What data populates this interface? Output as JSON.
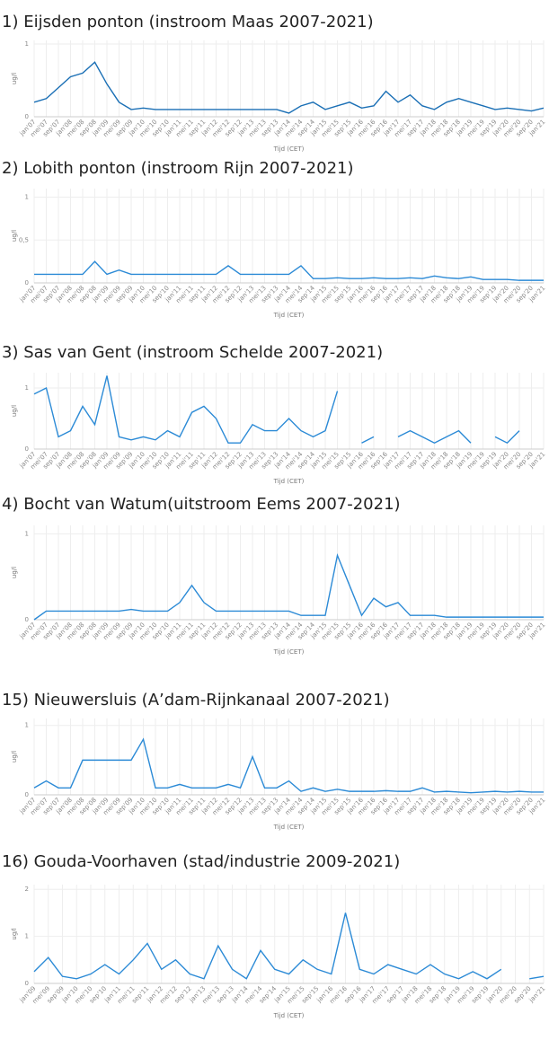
{
  "chart_data": [
    {
      "type": "line",
      "title": "1)    Eijsden ponton (instroom Maas 2007-2021)",
      "ylabel": "ug/l",
      "xlabel": "Tijd (CET)",
      "color": "#1a6fb5",
      "grid": true,
      "categories": [
        "jan'07",
        "mei'07",
        "sep'07",
        "jan'08",
        "mei'08",
        "sep'08",
        "jan'09",
        "mei'09",
        "sep'09",
        "jan'10",
        "mei'10",
        "sep'10",
        "jan'11",
        "mei'11",
        "sep'11",
        "jan'12",
        "mei'12",
        "sep'12",
        "jan'13",
        "mei'13",
        "sep'13",
        "jan'14",
        "mei'14",
        "sep'14",
        "jan'15",
        "mei'15",
        "sep'15",
        "jan'16",
        "mei'16",
        "sep'16",
        "jan'17",
        "mei'17",
        "sep'17",
        "jan'18",
        "mei'18",
        "sep'18",
        "jan'19",
        "mei'19",
        "sep'19",
        "jan'20",
        "mei'20",
        "sep'20",
        "jan'21"
      ],
      "values": [
        0.2,
        0.25,
        0.4,
        0.55,
        0.6,
        0.75,
        0.45,
        0.2,
        0.1,
        0.12,
        0.1,
        0.1,
        0.1,
        0.1,
        0.1,
        0.1,
        0.1,
        0.1,
        0.1,
        0.1,
        0.1,
        0.05,
        0.15,
        0.2,
        0.1,
        0.15,
        0.2,
        0.12,
        0.15,
        0.35,
        0.2,
        0.3,
        0.15,
        0.1,
        0.2,
        0.25,
        0.2,
        0.15,
        0.1,
        0.12,
        0.1,
        0.08,
        0.12
      ],
      "ylim": [
        0,
        1.05
      ],
      "yticks": [
        0,
        1
      ]
    },
    {
      "type": "line",
      "title": "2)    Lobith ponton (instroom Rijn 2007-2021)",
      "ylabel": "ug/l",
      "xlabel": "Tijd (CET)",
      "color": "#2b8ad6",
      "grid": true,
      "categories": [
        "jan'07",
        "mei'07",
        "sep'07",
        "jan'08",
        "mei'08",
        "sep'08",
        "jan'09",
        "mei'09",
        "sep'09",
        "jan'10",
        "mei'10",
        "sep'10",
        "jan'11",
        "mei'11",
        "sep'11",
        "jan'12",
        "mei'12",
        "sep'12",
        "jan'13",
        "mei'13",
        "sep'13",
        "jan'14",
        "mei'14",
        "sep'14",
        "jan'15",
        "mei'15",
        "sep'15",
        "jan'16",
        "mei'16",
        "sep'16",
        "jan'17",
        "mei'17",
        "sep'17",
        "jan'18",
        "mei'18",
        "sep'18",
        "jan'19",
        "mei'19",
        "sep'19",
        "jan'20",
        "mei'20",
        "sep'20",
        "jan'21"
      ],
      "values": [
        0.1,
        0.1,
        0.1,
        0.1,
        0.1,
        0.25,
        0.1,
        0.15,
        0.1,
        0.1,
        0.1,
        0.1,
        0.1,
        0.1,
        0.1,
        0.1,
        0.2,
        0.1,
        0.1,
        0.1,
        0.1,
        0.1,
        0.2,
        0.05,
        0.05,
        0.06,
        0.05,
        0.05,
        0.06,
        0.05,
        0.05,
        0.06,
        0.05,
        0.08,
        0.06,
        0.05,
        0.07,
        0.04,
        0.04,
        0.04,
        0.03,
        0.03,
        0.03
      ],
      "ylim": [
        0,
        1.1
      ],
      "yticks": [
        0,
        {
          "value": 0.5,
          "label": "0,5"
        },
        1
      ]
    },
    {
      "type": "line",
      "title": "3)    Sas van Gent (instroom Schelde 2007-2021)",
      "ylabel": "ug/l",
      "xlabel": "Tijd (CET)",
      "color": "#2b8ad6",
      "grid": true,
      "categories": [
        "jan'07",
        "mei'07",
        "sep'07",
        "jan'08",
        "mei'08",
        "sep'08",
        "jan'09",
        "mei'09",
        "sep'09",
        "jan'10",
        "mei'10",
        "sep'10",
        "jan'11",
        "mei'11",
        "sep'11",
        "jan'12",
        "mei'12",
        "sep'12",
        "jan'13",
        "mei'13",
        "sep'13",
        "jan'14",
        "mei'14",
        "sep'14",
        "jan'15",
        "mei'15",
        "sep'15",
        "jan'16",
        "mei'16",
        "sep'16",
        "jan'17",
        "mei'17",
        "sep'17",
        "jan'18",
        "mei'18",
        "sep'18",
        "jan'19",
        "mei'19",
        "sep'19",
        "jan'20",
        "mei'20",
        "sep'20",
        "jan'21"
      ],
      "values": [
        0.9,
        1.0,
        0.2,
        0.3,
        0.7,
        0.4,
        1.2,
        0.2,
        0.15,
        0.2,
        0.15,
        0.3,
        0.2,
        0.6,
        0.7,
        0.5,
        0.1,
        0.1,
        0.4,
        0.3,
        0.3,
        0.5,
        0.3,
        0.2,
        0.3,
        0.95,
        null,
        0.1,
        0.2,
        null,
        0.2,
        0.3,
        0.2,
        0.1,
        0.2,
        0.3,
        0.1,
        null,
        0.2,
        0.1,
        0.3,
        null,
        0.2
      ],
      "ylim": [
        0,
        1.25
      ],
      "yticks": [
        0,
        1
      ]
    },
    {
      "type": "line",
      "title": "4) Bocht van Watum(uitstroom Eems 2007-2021)",
      "ylabel": "ug/l",
      "xlabel": "Tijd (CET)",
      "color": "#2b8ad6",
      "grid": true,
      "categories": [
        "jan'07",
        "mei'07",
        "sep'07",
        "jan'08",
        "mei'08",
        "sep'08",
        "jan'09",
        "mei'09",
        "sep'09",
        "jan'10",
        "mei'10",
        "sep'10",
        "jan'11",
        "mei'11",
        "sep'11",
        "jan'12",
        "mei'12",
        "sep'12",
        "jan'13",
        "mei'13",
        "sep'13",
        "jan'14",
        "mei'14",
        "sep'14",
        "jan'15",
        "mei'15",
        "sep'15",
        "jan'16",
        "mei'16",
        "sep'16",
        "jan'17",
        "mei'17",
        "sep'17",
        "jan'18",
        "mei'18",
        "sep'18",
        "jan'19",
        "mei'19",
        "sep'19",
        "jan'20",
        "mei'20",
        "sep'20",
        "jan'21"
      ],
      "values": [
        0,
        0.1,
        0.1,
        0.1,
        0.1,
        0.1,
        0.1,
        0.1,
        0.12,
        0.1,
        0.1,
        0.1,
        0.2,
        0.4,
        0.2,
        0.1,
        0.1,
        0.1,
        0.1,
        0.1,
        0.1,
        0.1,
        0.05,
        0.05,
        0.05,
        0.75,
        0.4,
        0.05,
        0.25,
        0.15,
        0.2,
        0.05,
        0.05,
        0.05,
        0.03,
        0.03,
        0.03,
        0.03,
        0.03,
        0.03,
        0.03,
        0.03,
        0.03
      ],
      "ylim": [
        0,
        1.1
      ],
      "yticks": [
        0,
        1
      ]
    },
    {
      "type": "line",
      "title": "15) Nieuwersluis (A’dam-Rijnkanaal 2007-2021)",
      "ylabel": "ug/l",
      "xlabel": "Tijd (CET)",
      "color": "#2b8ad6",
      "grid": true,
      "categories": [
        "jan'07",
        "mei'07",
        "sep'07",
        "jan'08",
        "mei'08",
        "sep'08",
        "jan'09",
        "mei'09",
        "sep'09",
        "jan'10",
        "mei'10",
        "sep'10",
        "jan'11",
        "mei'11",
        "sep'11",
        "jan'12",
        "mei'12",
        "sep'12",
        "jan'13",
        "mei'13",
        "sep'13",
        "jan'14",
        "mei'14",
        "sep'14",
        "jan'15",
        "mei'15",
        "sep'15",
        "jan'16",
        "mei'16",
        "sep'16",
        "jan'17",
        "mei'17",
        "sep'17",
        "jan'18",
        "mei'18",
        "sep'18",
        "jan'19",
        "mei'19",
        "sep'19",
        "jan'20",
        "mei'20",
        "sep'20",
        "jan'21"
      ],
      "values": [
        0.1,
        0.2,
        0.1,
        0.1,
        0.5,
        0.5,
        0.5,
        0.5,
        0.5,
        0.8,
        0.1,
        0.1,
        0.15,
        0.1,
        0.1,
        0.1,
        0.15,
        0.1,
        0.55,
        0.1,
        0.1,
        0.2,
        0.05,
        0.1,
        0.05,
        0.08,
        0.05,
        0.05,
        0.05,
        0.06,
        0.05,
        0.05,
        0.1,
        0.04,
        0.05,
        0.04,
        0.03,
        0.04,
        0.05,
        0.04,
        0.05,
        0.04,
        0.04
      ],
      "ylim": [
        0,
        1.1
      ],
      "yticks": [
        0,
        1
      ]
    },
    {
      "type": "line",
      "title": "16) Gouda-Voorhaven (stad/industrie 2009-2021)",
      "ylabel": "ug/l",
      "xlabel": "Tijd (CET)",
      "color": "#2b8ad6",
      "grid": true,
      "categories": [
        "jan'09",
        "mei'09",
        "sep'09",
        "jan'10",
        "mei'10",
        "sep'10",
        "jan'11",
        "mei'11",
        "sep'11",
        "jan'12",
        "mei'12",
        "sep'12",
        "jan'13",
        "mei'13",
        "sep'13",
        "jan'14",
        "mei'14",
        "sep'14",
        "jan'15",
        "mei'15",
        "sep'15",
        "jan'16",
        "mei'16",
        "sep'16",
        "jan'17",
        "mei'17",
        "sep'17",
        "jan'18",
        "mei'18",
        "sep'18",
        "jan'19",
        "mei'19",
        "sep'19",
        "jan'20",
        "mei'20",
        "sep'20",
        "jan'21"
      ],
      "values": [
        0.25,
        0.55,
        0.15,
        0.1,
        0.2,
        0.4,
        0.2,
        0.5,
        0.85,
        0.3,
        0.5,
        0.2,
        0.1,
        0.8,
        0.3,
        0.1,
        0.7,
        0.3,
        0.2,
        0.5,
        0.3,
        0.2,
        1.5,
        0.3,
        0.2,
        0.4,
        0.3,
        0.2,
        0.4,
        0.2,
        0.1,
        0.25,
        0.1,
        0.3,
        null,
        0.1,
        0.15
      ],
      "ylim": [
        0,
        2.1
      ],
      "yticks": [
        0,
        1,
        2
      ]
    }
  ]
}
